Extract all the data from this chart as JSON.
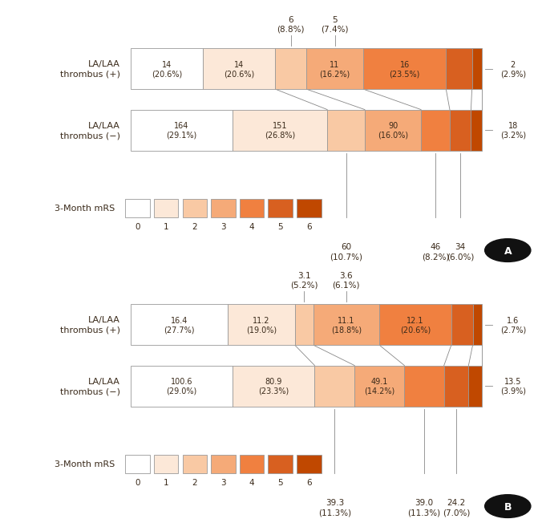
{
  "panel_A": {
    "thrombus_pos": {
      "values": [
        14,
        14,
        6,
        11,
        16,
        5,
        2
      ],
      "labels": [
        "14\n(20.6%)",
        "14\n(20.6%)",
        "",
        "11\n(16.2%)",
        "16\n(23.5%)",
        "",
        ""
      ],
      "percentages": [
        20.6,
        20.6,
        8.8,
        16.2,
        23.5,
        7.4,
        2.9
      ]
    },
    "thrombus_neg": {
      "values": [
        164,
        151,
        60,
        90,
        46,
        34,
        18
      ],
      "labels": [
        "164\n(29.1%)",
        "151\n(26.8%)",
        "",
        "90\n(16.0%)",
        "",
        "",
        ""
      ],
      "percentages": [
        29.1,
        26.8,
        10.7,
        16.0,
        8.2,
        6.0,
        3.2
      ]
    },
    "above_pos": [
      {
        "label": "6\n(8.8%)",
        "seg": 2
      },
      {
        "label": "5\n(7.4%)",
        "seg": 3
      }
    ],
    "below_neg": [
      {
        "label": "60\n(10.7%)",
        "seg": 2
      },
      {
        "label": "46\n(8.2%)",
        "seg": 4
      },
      {
        "label": "34\n(6.0%)",
        "seg": 5
      }
    ],
    "pos_right": {
      "val": "2",
      "pct": "(2.9%)"
    },
    "neg_right": {
      "val": "18",
      "pct": "(3.2%)"
    }
  },
  "panel_B": {
    "thrombus_pos": {
      "values": [
        16.4,
        11.2,
        3.1,
        11.1,
        12.1,
        3.6,
        1.6
      ],
      "labels": [
        "16.4\n(27.7%)",
        "11.2\n(19.0%)",
        "",
        "11.1\n(18.8%)",
        "12.1\n(20.6%)",
        "",
        ""
      ],
      "percentages": [
        27.7,
        19.0,
        5.2,
        18.8,
        20.6,
        6.1,
        2.7
      ]
    },
    "thrombus_neg": {
      "values": [
        100.6,
        80.9,
        39.3,
        49.1,
        39.0,
        24.2,
        13.5
      ],
      "labels": [
        "100.6\n(29.0%)",
        "80.9\n(23.3%)",
        "",
        "49.1\n(14.2%)",
        "",
        "",
        ""
      ],
      "percentages": [
        29.0,
        23.3,
        11.3,
        14.2,
        11.3,
        7.0,
        3.9
      ]
    },
    "above_pos": [
      {
        "label": "3.1\n(5.2%)",
        "seg": 2
      },
      {
        "label": "3.6\n(6.1%)",
        "seg": 3
      }
    ],
    "below_neg": [
      {
        "label": "39.3\n(11.3%)",
        "seg": 2
      },
      {
        "label": "39.0\n(11.3%)",
        "seg": 4
      },
      {
        "label": "24.2\n(7.0%)",
        "seg": 5
      }
    ],
    "pos_right": {
      "val": "1.6",
      "pct": "(2.7%)"
    },
    "neg_right": {
      "val": "13.5",
      "pct": "(3.9%)"
    }
  },
  "colors": [
    "#ffffff",
    "#fce8d8",
    "#f9c9a4",
    "#f5aa78",
    "#f08040",
    "#d86020",
    "#c04800"
  ],
  "bar_edge_color": "#999999",
  "text_color": "#3a2a1a",
  "bg_color": "#ffffff",
  "legend_labels": [
    "0",
    "1",
    "2",
    "3",
    "4",
    "5",
    "6"
  ]
}
